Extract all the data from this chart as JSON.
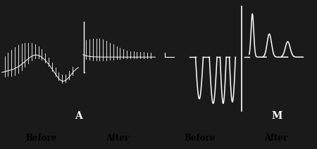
{
  "bg_color": "#000000",
  "line_color": "#ffffff",
  "fig_bg": "#1a1a1a",
  "panel_A_label": "A",
  "panel_M_label": "M",
  "before_label": "Before",
  "after_label": "After",
  "bottom_label_color": "#000000",
  "bottom_bg_color": "#b0b0b0"
}
